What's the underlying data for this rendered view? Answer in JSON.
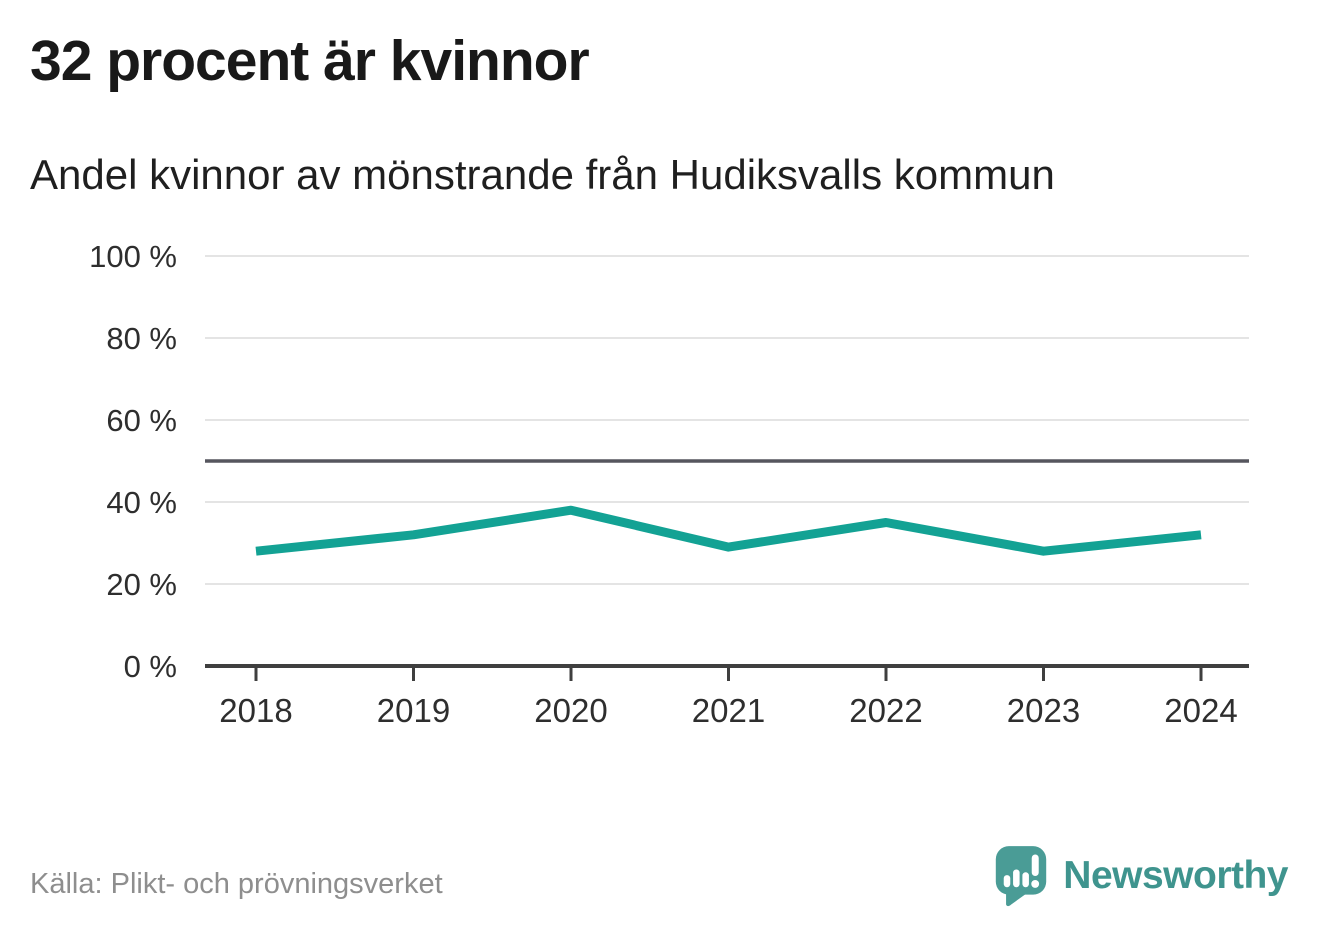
{
  "header": {
    "title": "32 procent är kvinnor",
    "subtitle": "Andel kvinnor av mönstrande från Hudiksvalls kommun"
  },
  "chart_data": {
    "type": "line",
    "title": "32 procent är kvinnor",
    "subtitle": "Andel kvinnor av mönstrande från Hudiksvalls kommun",
    "categories": [
      "2018",
      "2019",
      "2020",
      "2021",
      "2022",
      "2023",
      "2024"
    ],
    "series": [
      {
        "name": "Andel kvinnor av mönstrande",
        "color": "#13a294",
        "values": [
          28,
          32,
          38,
          29,
          35,
          28,
          32
        ]
      }
    ],
    "unit": "%",
    "ylim": [
      0,
      100
    ],
    "y_ticks": [
      {
        "value": 0,
        "label": "0 %"
      },
      {
        "value": 20,
        "label": "20 %"
      },
      {
        "value": 40,
        "label": "40 %"
      },
      {
        "value": 60,
        "label": "60 %"
      },
      {
        "value": 80,
        "label": "80 %"
      },
      {
        "value": 100,
        "label": "100 %"
      }
    ],
    "reference_line": {
      "value": 50,
      "color": "#56565e"
    },
    "grid": true,
    "legend": "none"
  },
  "colors": {
    "accent": "#13a294",
    "brand": "#3f948e",
    "reference": "#56565e"
  },
  "footer": {
    "source": "Källa: Plikt- och prövningsverket",
    "brand_name": "Newsworthy"
  }
}
